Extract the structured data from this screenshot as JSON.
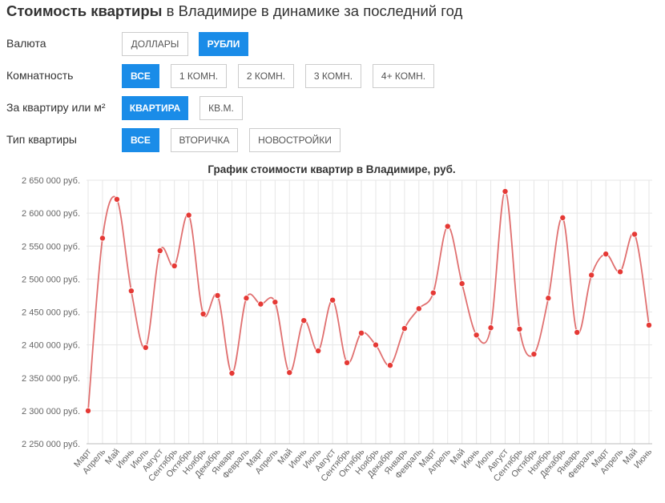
{
  "header": {
    "title_bold": "Стоимость квартиры",
    "title_rest": " в Владимире в динамике за последний год"
  },
  "filters": {
    "currency": {
      "label": "Валюта",
      "options": [
        {
          "label": "Доллары",
          "active": false
        },
        {
          "label": "Рубли",
          "active": true
        }
      ]
    },
    "rooms": {
      "label": "Комнатность",
      "options": [
        {
          "label": "Все",
          "active": true
        },
        {
          "label": "1 комн.",
          "active": false
        },
        {
          "label": "2 комн.",
          "active": false
        },
        {
          "label": "3 комн.",
          "active": false
        },
        {
          "label": "4+ комн.",
          "active": false
        }
      ]
    },
    "unit": {
      "label": "За квартиру или м²",
      "options": [
        {
          "label": "Квартира",
          "active": true
        },
        {
          "label": "кв.м.",
          "active": false
        }
      ]
    },
    "type": {
      "label": "Тип квартиры",
      "options": [
        {
          "label": "Все",
          "active": true
        },
        {
          "label": "Вторичка",
          "active": false
        },
        {
          "label": "Новостройки",
          "active": false
        }
      ]
    }
  },
  "colors": {
    "accent": "#1a8ce8",
    "line": "#e07070",
    "point": "#e53935",
    "grid": "#e6e6e6"
  },
  "chart_data": {
    "type": "line",
    "title": "График стоимости квартир в Владимире, руб.",
    "xlabel": "",
    "ylabel": "",
    "ylim": [
      2250000,
      2650000
    ],
    "y_ticks": [
      2250000,
      2300000,
      2350000,
      2400000,
      2450000,
      2500000,
      2550000,
      2600000,
      2650000
    ],
    "y_tick_labels": [
      "2 250 000 руб.",
      "2 300 000 руб.",
      "2 350 000 руб.",
      "2 400 000 руб.",
      "2 450 000 руб.",
      "2 500 000 руб.",
      "2 550 000 руб.",
      "2 600 000 руб.",
      "2 650 000 руб."
    ],
    "categories": [
      "Март",
      "Апрель",
      "Май",
      "Июнь",
      "Июль",
      "Август",
      "Сентябрь",
      "Октябрь",
      "Ноябрь",
      "Декабрь",
      "Январь",
      "Февраль",
      "Март",
      "Апрель",
      "Май",
      "Июнь",
      "Июль",
      "Август",
      "Сентябрь",
      "Октябрь",
      "Ноябрь",
      "Декабрь",
      "Январь",
      "Февраль",
      "Март",
      "Апрель",
      "Май",
      "Июнь",
      "Июль",
      "Август",
      "Сентябрь",
      "Октябрь",
      "Ноябрь",
      "Декабрь",
      "Январь",
      "Февраль",
      "Март",
      "Апрель",
      "Май",
      "Июнь"
    ],
    "series": [
      {
        "values": [
          2300000,
          2562000,
          2621000,
          2482000,
          2396000,
          2543000,
          2520000,
          2597000,
          2447000,
          2475000,
          2357000,
          2471000,
          2462000,
          2465000,
          2358000,
          2437000,
          2391000,
          2468000,
          2373000,
          2418000,
          2400000,
          2369000,
          2425000,
          2455000,
          2479000,
          2580000,
          2493000,
          2415000,
          2426000,
          2633000,
          2424000,
          2386000,
          2471000,
          2593000,
          2419000,
          2506000,
          2538000,
          2511000,
          2568000,
          2430000
        ]
      }
    ],
    "grid": true,
    "legend": "none"
  }
}
